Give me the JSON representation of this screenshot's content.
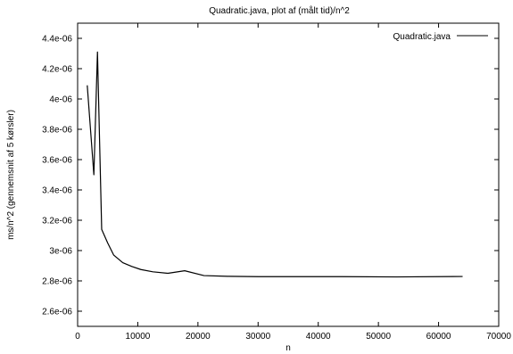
{
  "chart_data": {
    "type": "line",
    "title": "Quadratic.java, plot af (målt tid)/n^2",
    "xlabel": "n",
    "ylabel": "ms/n^2 (gennemsnit af 5 kørsler)",
    "xlim": [
      0,
      70000
    ],
    "ylim": [
      2.5e-06,
      4.5e-06
    ],
    "x_ticks": [
      0,
      10000,
      20000,
      30000,
      40000,
      50000,
      60000,
      70000
    ],
    "x_tick_labels": [
      "0",
      "10000",
      "20000",
      "30000",
      "40000",
      "50000",
      "60000",
      "70000"
    ],
    "y_ticks": [
      2.6e-06,
      2.8e-06,
      3e-06,
      3.2e-06,
      3.4e-06,
      3.6e-06,
      3.8e-06,
      4e-06,
      4.2e-06,
      4.4e-06
    ],
    "y_tick_labels": [
      "2.6e-06",
      "2.8e-06",
      "3e-06",
      "3.2e-06",
      "3.4e-06",
      "3.6e-06",
      "3.8e-06",
      "4e-06",
      "4.2e-06",
      "4.4e-06"
    ],
    "grid": false,
    "legend_position": "top-right",
    "series": [
      {
        "name": "Quadratic.java",
        "color": "#000000",
        "x": [
          1600,
          2700,
          3300,
          4000,
          5000,
          6000,
          7500,
          9000,
          10500,
          12500,
          15000,
          17800,
          21000,
          25000,
          30000,
          38000,
          44000,
          53000,
          64000
        ],
        "y": [
          4.09e-06,
          3.5e-06,
          4.31e-06,
          3.14e-06,
          3.05e-06,
          2.97e-06,
          2.92e-06,
          2.895e-06,
          2.875e-06,
          2.86e-06,
          2.85e-06,
          2.867e-06,
          2.835e-06,
          2.83e-06,
          2.828e-06,
          2.828e-06,
          2.828e-06,
          2.826e-06,
          2.829e-06
        ]
      }
    ]
  }
}
